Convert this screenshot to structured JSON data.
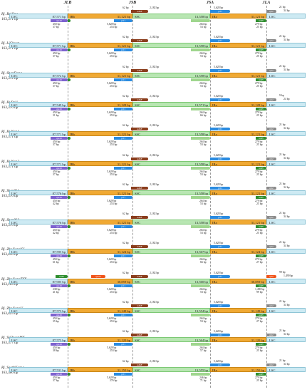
{
  "junctions": {
    "jlb": "JLB",
    "jsb": "JSB",
    "jsa": "JSA",
    "jla": "JLA"
  },
  "segments": {
    "lsc": "LSC",
    "irb": "IRb",
    "ssc": "SSC",
    "ira": "IRa"
  },
  "genes": {
    "rps19": "rps19",
    "ndhF": "ndhF",
    "ycf1": "ycf1",
    "trnH": "trnH",
    "rpl2": "rpl2",
    "rpl22": "rpl22"
  },
  "colors": {
    "lsc": "#cdeaf3",
    "ir": "#f0a933",
    "ssc": "#b8e6b2",
    "rps19": "#7d62cf",
    "ndhF": "#8a3d1c",
    "ycf1": "#2a8be0",
    "trnH": "#2f8e2f",
    "rpl22": "#f0531a"
  },
  "rows": [
    {
      "species": "Rj. BeiJing",
      "size": "163,371 bp",
      "lsc_len": "87,571 bp",
      "ir_len": "31,121 bp",
      "ssc_len": "13,558 bp",
      "ira_len": "31,121 bp",
      "r19_out": "450 bp",
      "r19_in": "37 bp",
      "jsb_left": "5,628 bp",
      "jsb_mid": "253 bp",
      "ndhF_top": "62 bp",
      "ndhF_top2": "2,182 bp",
      "jsa_left": "264 bp",
      "jsa_mid": "53 bp",
      "ycf1_top": "5,628 bp",
      "jla_l1": "279 bp",
      "jla_l2": "25 bp",
      "jla_top": "21 bp",
      "jla_top2": "34 bp",
      "top_bp": "21 bp"
    },
    {
      "species": "Rj. LiChuan",
      "size": "163,371 bp",
      "lsc_len": "87,571 bp",
      "ir_len": "31,121 bp",
      "ssc_len": "13,558 bp",
      "ira_len": "31,121 bp",
      "r19_out": "450 bp",
      "r19_in": "37 bp",
      "jsb_left": "5,628 bp",
      "jsb_mid": "253 bp",
      "ndhF_top": "62 bp",
      "ndhF_top2": "2,182 bp",
      "jsa_left": "264 bp",
      "jsa_mid": "53 bp",
      "ycf1_top": "5,628 bp",
      "jla_l1": "279 bp",
      "jla_l2": "25 bp",
      "jla_top": "21 bp",
      "jla_top2": "34 bp",
      "top_bp": "21 bp"
    },
    {
      "species": "Rj. ShanDong",
      "size": "163,372 bp",
      "lsc_len": "87,572 bp",
      "ir_len": "31,121 bp",
      "ssc_len": "13,558 bp",
      "ira_len": "31,121 bp",
      "r19_out": "450 bp",
      "r19_in": "37 bp",
      "jsb_left": "5,628 bp",
      "jsb_mid": "253 bp",
      "ndhF_top": "62 bp",
      "ndhF_top2": "2,182 bp",
      "jsa_left": "264 bp",
      "jsa_mid": "53 bp",
      "ycf1_top": "5,628 bp",
      "jla_l1": "279 bp",
      "jla_l2": "25 bp",
      "jla_top": "21 bp",
      "jla_top2": "34 bp",
      "top_bp": "21 bp"
    },
    {
      "species": "Rj. HuBei1",
      "size": "163,376 bp",
      "lsc_len": "87,549 bp",
      "ir_len": "31,128 bp",
      "ssc_len": "13,571 bp",
      "ira_len": "31,128 bp",
      "r19_out": "450 bp",
      "r19_in": "31 bp",
      "jsb_left": "5,628 bp",
      "jsb_mid": "253 bp",
      "ndhF_top": "62 bp",
      "ndhF_top2": "2,182 bp",
      "jsa_left": "264 bp",
      "jsa_mid": "66 bp",
      "ycf1_top": "5,628 bp",
      "jla_l1": "279 bp",
      "jla_l2": "25 bp",
      "jla_top": "9 bp",
      "jla_top2": "24 bp",
      "top_bp": "21 bp"
    },
    {
      "species": "Rj. HuNan1",
      "size": "163,371 bp",
      "lsc_len": "87,571 bp",
      "ir_len": "31,121 bp",
      "ssc_len": "13,558 bp",
      "ira_len": "31,121 bp",
      "r19_out": "450 bp",
      "r19_in": "37 bp",
      "jsb_left": "5,628 bp",
      "jsb_mid": "253 bp",
      "ndhF_top": "62 bp",
      "ndhF_top2": "2,182 bp",
      "jsa_left": "264 bp",
      "jsa_mid": "53 bp",
      "ycf1_top": "5,628 bp",
      "jla_l1": "279 bp",
      "jla_l2": "25 bp",
      "jla_top": "21 bp",
      "jla_top2": "34 bp",
      "top_bp": "21 bp"
    },
    {
      "species": "Rj. HuNan2",
      "size": "163,371 bp",
      "lsc_len": "87,571 bp",
      "ir_len": "31,121 bp",
      "ssc_len": "13,558 bp",
      "ira_len": "31,121 bp",
      "r19_out": "450 bp",
      "r19_in": "37 bp",
      "jsb_left": "5,628 bp",
      "jsb_mid": "253 bp",
      "ndhF_top": "62 bp",
      "ndhF_top2": "2,182 bp",
      "jsa_left": "264 bp",
      "jsa_mid": "53 bp",
      "ycf1_top": "5,628 bp",
      "jla_l1": "279 bp",
      "jla_l2": "25 bp",
      "jla_top": "21 bp",
      "jla_top2": "34 bp",
      "top_bp": "21 bp"
    },
    {
      "species": "Rj. ShanXi1",
      "size": "163,376 bp",
      "lsc_len": "87,576 bp",
      "ir_len": "31,121 bp",
      "ssc_len": "13,558 bp",
      "ira_len": "31,121 bp",
      "r19_out": "450 bp",
      "r19_in": "42 bp",
      "jsb_left": "5,628 bp",
      "jsb_mid": "253 bp",
      "ndhF_top": "62 bp",
      "ndhF_top2": "2,182 bp",
      "jsa_left": "264 bp",
      "jsa_mid": "53 bp",
      "ycf1_top": "5,628 bp",
      "jla_l1": "279 bp",
      "jla_l2": "25 bp",
      "jla_top": "21 bp",
      "jla_top2": "34 bp",
      "top_bp": "21 bp"
    },
    {
      "species": "Rj. ShanXi2",
      "size": "163,376 bp",
      "lsc_len": "87,576 bp",
      "ir_len": "31,121 bp",
      "ssc_len": "13,558 bp",
      "ira_len": "31,121 bp",
      "r19_out": "450 bp",
      "r19_in": "42 bp",
      "jsb_left": "5,628 bp",
      "jsb_mid": "253 bp",
      "ndhF_top": "62 bp",
      "ndhF_top2": "2,182 bp",
      "jsa_left": "264 bp",
      "jsa_mid": "53 bp",
      "ycf1_top": "5,628 bp",
      "jla_l1": "279 bp",
      "jla_l2": "25 bp",
      "jla_top": "21 bp",
      "jla_top2": "34 bp",
      "top_bp": "21 bp"
    },
    {
      "species": "Rj. ZheJiangKJ",
      "size": "163,410 bp",
      "lsc_len": "87,595 bp",
      "ir_len": "31,124 bp",
      "ssc_len": "13,567 bp",
      "ira_len": "31,124 bp",
      "r19_out": "450 bp",
      "r19_in": "61 bp",
      "jsb_left": "5,628 bp",
      "jsb_mid": "253 bp",
      "ndhF_top": "62 bp",
      "ndhF_top2": "2,182 bp",
      "jsa_left": "264 bp",
      "jsa_mid": "66 bp",
      "ycf1_top": "5,628 bp",
      "jla_l1": "279 bp",
      "jla_l2": "27 bp",
      "jla_top": "21 bp",
      "jla_top2": "34 bp",
      "top_bp": "21 bp"
    },
    {
      "species": "Rj. ZheJiangTYY",
      "size": "163,183 bp",
      "lsc_len": "87,905 bp",
      "ir_len": "30,859 bp",
      "ssc_len": "13,560 bp",
      "ira_len": "30,859 bp",
      "r19_out": "238 bp",
      "r19_in": "41 bp",
      "jsb_left": "5,628 bp",
      "jsb_mid": "253 bp",
      "ndhF_top": "62 bp",
      "ndhF_top2": "2,182 bp",
      "jsa_left": "264 bp",
      "jsa_mid": "53 bp",
      "ycf1_top": "5,628 bp",
      "jla_l1": "1,490 bp",
      "jla_l2": "99 bp",
      "jla_top": "99 bp",
      "jla_top2": "1,490 bp",
      "top_bp": "99 bp"
    },
    {
      "species": "Rj. ZheJiangU",
      "size": "163,425 bp",
      "lsc_len": "87,573 bp",
      "ir_len": "31,149 bp",
      "ssc_len": "13,554 bp",
      "ira_len": "31,149 bp",
      "r19_out": "450 bp",
      "r19_in": "35 bp",
      "jsb_left": "5,628 bp",
      "jsb_mid": "253 bp",
      "ndhF_top": "62 bp",
      "ndhF_top2": "2,182 bp",
      "jsa_left": "264 bp",
      "jsa_mid": "53 bp",
      "ycf1_top": "5,628 bp",
      "jla_l1": "279 bp",
      "jla_l2": "27 bp",
      "jla_top": "21 bp",
      "jla_top2": "34 bp",
      "top_bp": "24 bp"
    },
    {
      "species": "Rj. SiChuanMY",
      "size": "163,377 bp",
      "lsc_len": "87,573 bp",
      "ir_len": "31,120 bp",
      "ssc_len": "13,564 bp",
      "ira_len": "31,120 bp",
      "r19_out": "450 bp",
      "r19_in": "38 bp",
      "jsb_left": "5,628 bp",
      "jsb_mid": "253 bp",
      "ndhF_top": "62 bp",
      "ndhF_top2": "2,182 bp",
      "jsa_left": "264 bp",
      "jsa_mid": "57 bp",
      "ycf1_top": "5,628 bp",
      "jla_l1": "279 bp",
      "jla_l2": "25 bp",
      "jla_top": "21 bp",
      "jla_top2": "34 bp",
      "top_bp": "24 bp"
    },
    {
      "species": "Rj. SouthKorea",
      "size": "163,386 bp",
      "lsc_len": "87,531 bp",
      "ir_len": "31,150 bp",
      "ssc_len": "13,555 bp",
      "ira_len": "31,150 bp",
      "r19_out": "450 bp",
      "r19_in": "37 bp",
      "jsb_left": "5,628 bp",
      "jsb_mid": "276 bp",
      "ndhF_top": "62 bp",
      "ndhF_top2": "2,182 bp",
      "jsa_left": "246 bp",
      "jsa_mid": "71 bp",
      "ycf1_top": "5,628 bp",
      "jla_l1": "279 bp",
      "jla_l2": "25 bp",
      "jla_top": "21 bp",
      "jla_top2": "34 bp",
      "top_bp": "24 bp"
    }
  ]
}
